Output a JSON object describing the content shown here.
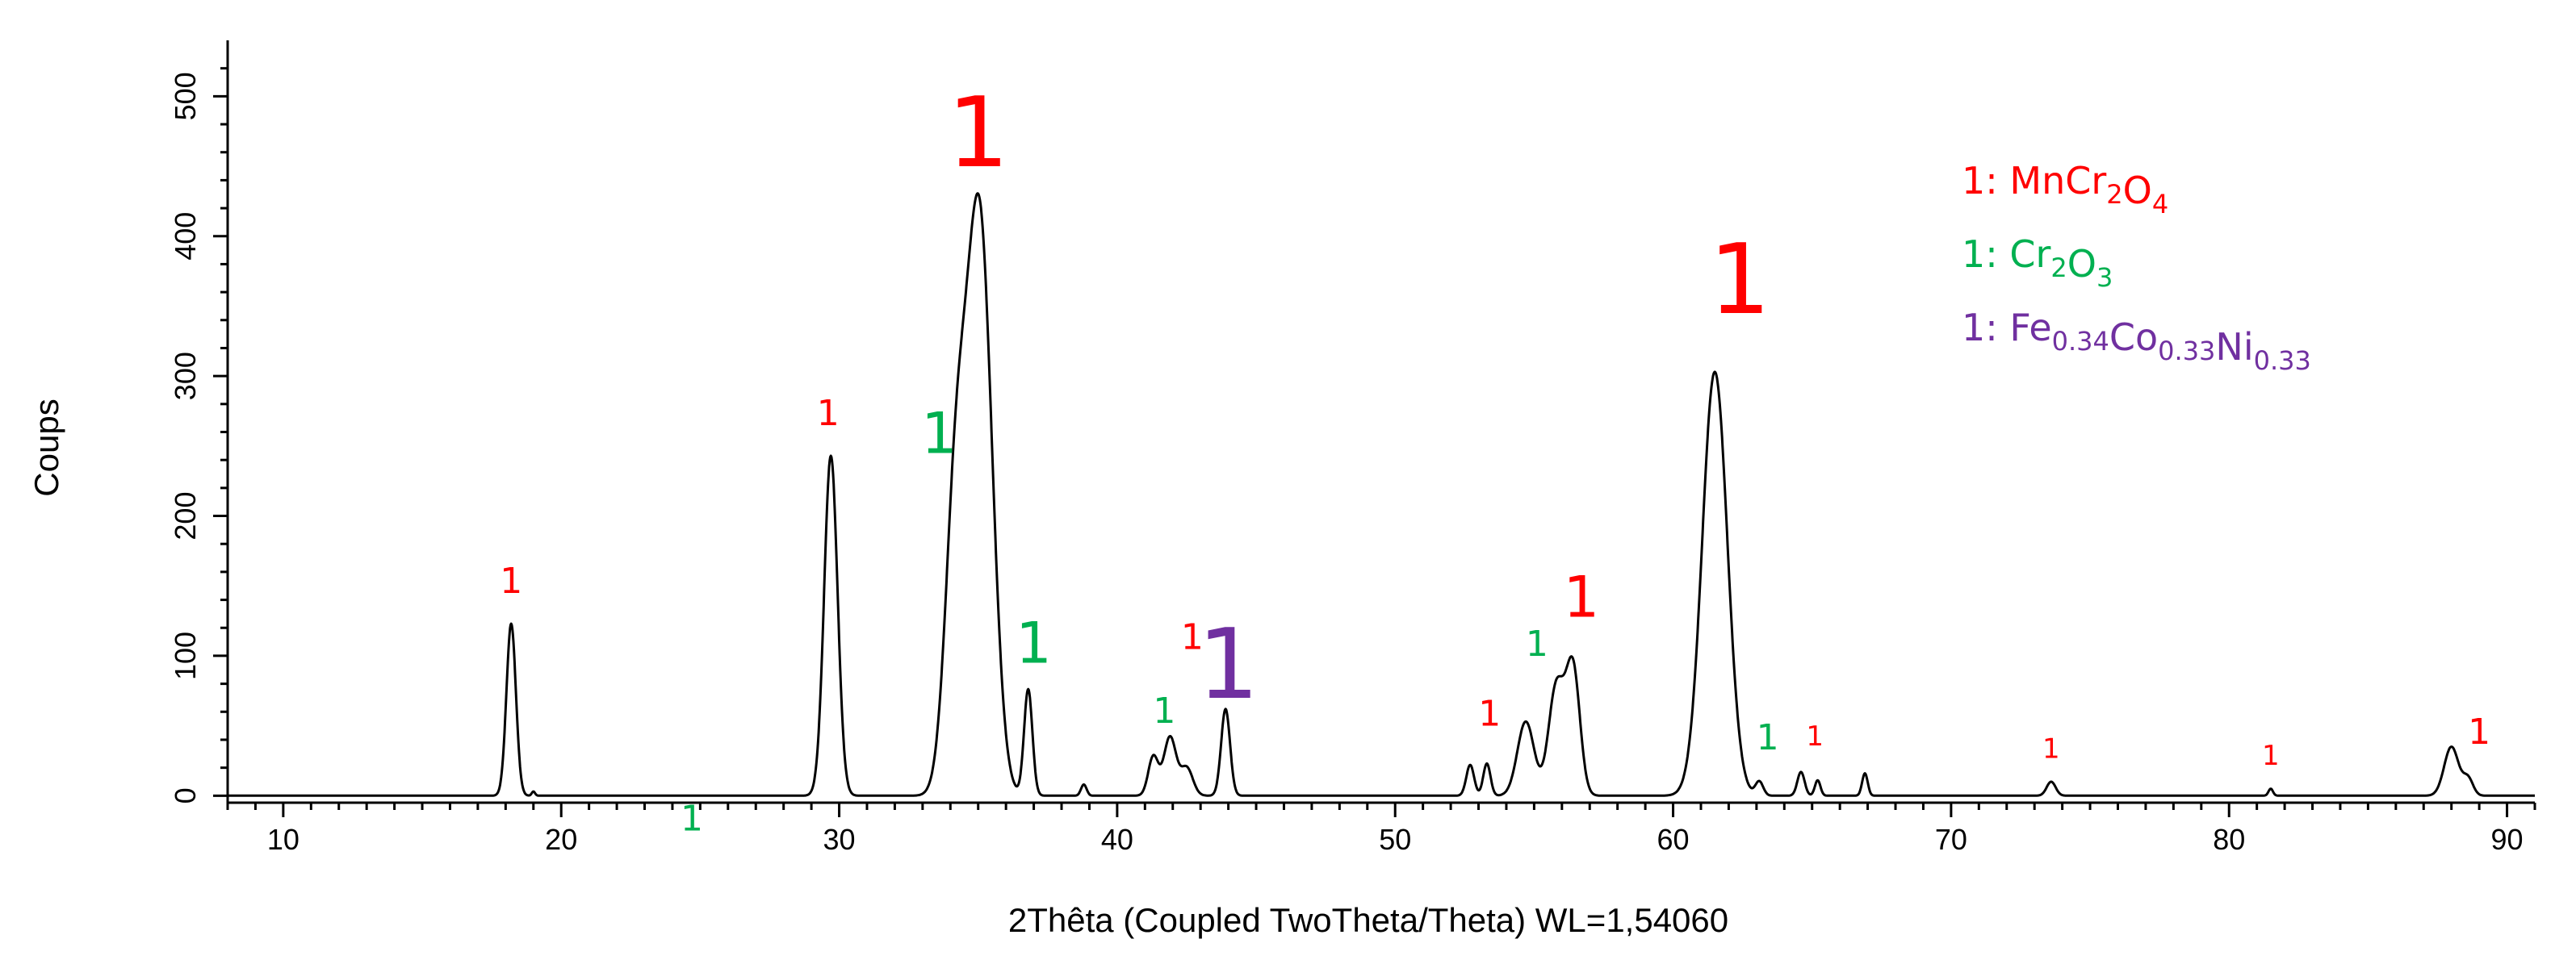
{
  "chart_data": {
    "type": "line",
    "xlabel": "2Thêta (Coupled TwoTheta/Theta) WL=1,54060",
    "ylabel": "Coups",
    "xlim": [
      8,
      91
    ],
    "ylim": [
      -5,
      540
    ],
    "x_ticks": [
      10,
      20,
      30,
      40,
      50,
      60,
      70,
      80,
      90
    ],
    "y_ticks": [
      0,
      100,
      200,
      300,
      400,
      500
    ],
    "peaks": [
      {
        "x": 18.2,
        "y": 123,
        "w": 0.17
      },
      {
        "x": 19.0,
        "y": 3,
        "w": 0.06
      },
      {
        "x": 29.7,
        "y": 243,
        "w": 0.24
      },
      {
        "x": 34.2,
        "y": 210,
        "w": 0.38
      },
      {
        "x": 35.05,
        "y": 410,
        "w": 0.45
      },
      {
        "x": 36.8,
        "y": 76,
        "w": 0.15
      },
      {
        "x": 38.8,
        "y": 8,
        "w": 0.1
      },
      {
        "x": 41.3,
        "y": 28,
        "w": 0.18
      },
      {
        "x": 41.9,
        "y": 42,
        "w": 0.22
      },
      {
        "x": 42.5,
        "y": 20,
        "w": 0.22
      },
      {
        "x": 43.9,
        "y": 62,
        "w": 0.16
      },
      {
        "x": 52.7,
        "y": 22,
        "w": 0.14
      },
      {
        "x": 53.3,
        "y": 23,
        "w": 0.13
      },
      {
        "x": 54.7,
        "y": 53,
        "w": 0.3
      },
      {
        "x": 55.8,
        "y": 78,
        "w": 0.28
      },
      {
        "x": 56.4,
        "y": 90,
        "w": 0.25
      },
      {
        "x": 61.5,
        "y": 303,
        "w": 0.45
      },
      {
        "x": 63.1,
        "y": 10,
        "w": 0.14
      },
      {
        "x": 64.6,
        "y": 17,
        "w": 0.13
      },
      {
        "x": 65.2,
        "y": 11,
        "w": 0.1
      },
      {
        "x": 66.9,
        "y": 16,
        "w": 0.1
      },
      {
        "x": 73.6,
        "y": 10,
        "w": 0.16
      },
      {
        "x": 81.5,
        "y": 5,
        "w": 0.08
      },
      {
        "x": 88.0,
        "y": 35,
        "w": 0.26
      },
      {
        "x": 88.6,
        "y": 12,
        "w": 0.18
      }
    ],
    "annotations": [
      {
        "text": "1",
        "color": "#ff0000",
        "size": 44,
        "x": 18.2,
        "y": 145
      },
      {
        "text": "1",
        "color": "#ff0000",
        "size": 44,
        "x": 29.6,
        "y": 265
      },
      {
        "text": "1",
        "color": "#00b050",
        "size": 70,
        "x": 33.6,
        "y": 245
      },
      {
        "text": "1",
        "color": "#ff0000",
        "size": 120,
        "x": 35.0,
        "y": 450
      },
      {
        "text": "1",
        "color": "#00b050",
        "size": 70,
        "x": 37.0,
        "y": 95
      },
      {
        "text": "1",
        "color": "#00b050",
        "size": 44,
        "x": 24.7,
        "y": -25
      },
      {
        "text": "1",
        "color": "#00b050",
        "size": 44,
        "x": 41.7,
        "y": 52
      },
      {
        "text": "1",
        "color": "#ff0000",
        "size": 44,
        "x": 42.7,
        "y": 105
      },
      {
        "text": "1",
        "color": "#7030a0",
        "size": 120,
        "x": 44.0,
        "y": 70
      },
      {
        "text": "1",
        "color": "#ff0000",
        "size": 44,
        "x": 53.4,
        "y": 50
      },
      {
        "text": "1",
        "color": "#00b050",
        "size": 44,
        "x": 55.1,
        "y": 100
      },
      {
        "text": "1",
        "color": "#ff0000",
        "size": 70,
        "x": 56.7,
        "y": 128
      },
      {
        "text": "1",
        "color": "#ff0000",
        "size": 120,
        "x": 62.4,
        "y": 345
      },
      {
        "text": "1",
        "color": "#00b050",
        "size": 44,
        "x": 63.4,
        "y": 33
      },
      {
        "text": "1",
        "color": "#ff0000",
        "size": 34,
        "x": 65.1,
        "y": 36
      },
      {
        "text": "1",
        "color": "#ff0000",
        "size": 34,
        "x": 73.6,
        "y": 27
      },
      {
        "text": "1",
        "color": "#ff0000",
        "size": 34,
        "x": 81.5,
        "y": 22
      },
      {
        "text": "1",
        "color": "#ff0000",
        "size": 44,
        "x": 89.0,
        "y": 37
      }
    ],
    "legend": {
      "placement": "top-right",
      "entries": [
        {
          "color": "#ff0000",
          "parts": [
            {
              "t": "1: MnCr"
            },
            {
              "t": "2",
              "sub": true
            },
            {
              "t": "O"
            },
            {
              "t": "4",
              "sub": true
            }
          ]
        },
        {
          "color": "#00b050",
          "parts": [
            {
              "t": "1: Cr"
            },
            {
              "t": "2",
              "sub": true
            },
            {
              "t": "O"
            },
            {
              "t": "3",
              "sub": true
            }
          ]
        },
        {
          "color": "#7030a0",
          "parts": [
            {
              "t": "1: Fe"
            },
            {
              "t": "0.34",
              "sub": true
            },
            {
              "t": "Co"
            },
            {
              "t": "0.33",
              "sub": true
            },
            {
              "t": "Ni"
            },
            {
              "t": "0.33",
              "sub": true
            }
          ]
        }
      ]
    }
  }
}
